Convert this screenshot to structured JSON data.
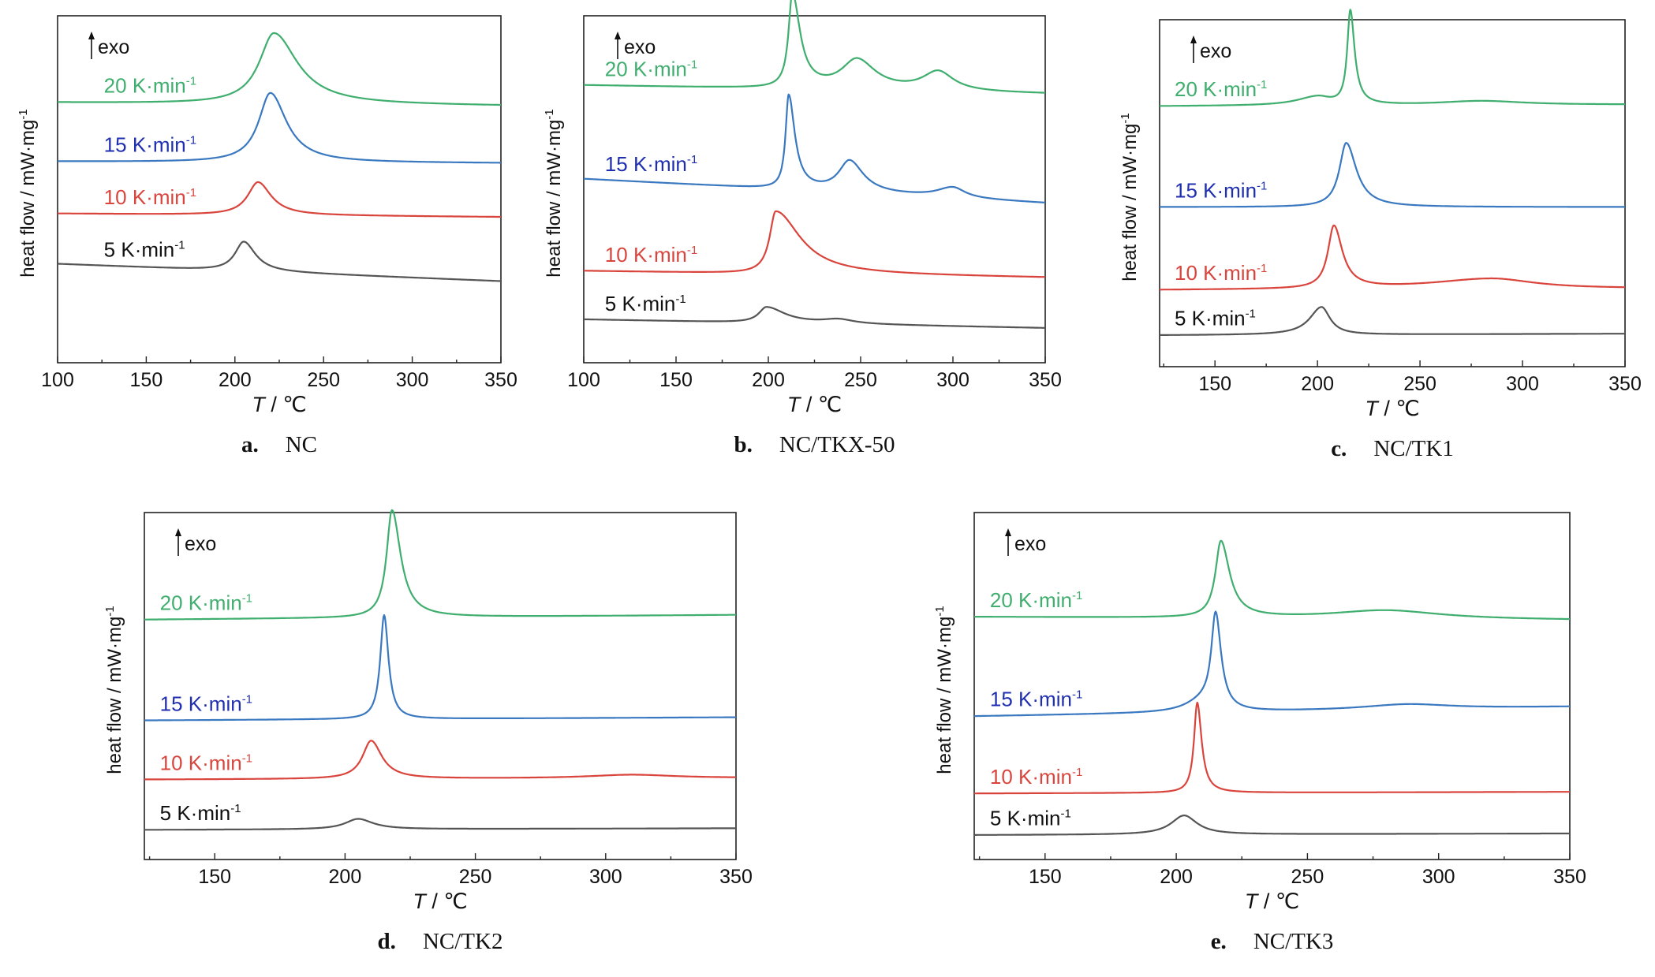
{
  "figure": {
    "colors": {
      "5": "#555555",
      "10": "#d9453d",
      "15": "#3a78c0",
      "20": "#3fae6e"
    },
    "label_colors": {
      "5": "#111111",
      "10": "#d9453d",
      "15": "#1f2fb0",
      "20": "#3fae6e"
    }
  },
  "chart_data": [
    {
      "type": "line",
      "panel_letter": "a.",
      "panel_name": "NC",
      "xlabel_italic": "T",
      "xlabel_rest": " / ℃",
      "ylabel": "heat flow / mW·mg",
      "ylabel_sup": "-1",
      "exo_label": "exo",
      "xlim": [
        100,
        350
      ],
      "xticks": [
        "100",
        "150",
        "200",
        "250",
        "300",
        "350"
      ],
      "series": [
        {
          "rate": "20",
          "label": "20 K·min",
          "label_sup": "-1",
          "label_x": 135,
          "baseline": [
            0.75,
            0.74
          ],
          "peaks": [
            {
              "t": 222,
              "h": 0.205,
              "wl": 10,
              "wr": 16
            }
          ]
        },
        {
          "rate": "15",
          "label": "15 K·min",
          "label_sup": "-1",
          "label_x": 135,
          "baseline": [
            0.58,
            0.575
          ],
          "peaks": [
            {
              "t": 220,
              "h": 0.2,
              "wl": 8,
              "wr": 11
            }
          ]
        },
        {
          "rate": "10",
          "label": "10 K·min",
          "label_sup": "-1",
          "label_x": 135,
          "baseline": [
            0.43,
            0.42
          ],
          "peaks": [
            {
              "t": 213,
              "h": 0.095,
              "wl": 7,
              "wr": 9
            }
          ]
        },
        {
          "rate": "5",
          "label": "5 K·min",
          "label_sup": "-1",
          "label_x": 135,
          "baseline": [
            0.285,
            0.235
          ],
          "peaks": [
            {
              "t": 205,
              "h": 0.085,
              "wl": 6,
              "wr": 8
            }
          ]
        }
      ]
    },
    {
      "type": "line",
      "panel_letter": "b.",
      "panel_name": "NC/TKX-50",
      "xlabel_italic": "T",
      "xlabel_rest": " / ℃",
      "ylabel": "heat flow / mW·mg",
      "ylabel_sup": "-1",
      "exo_label": "exo",
      "xlim": [
        100,
        350
      ],
      "xticks": [
        "100",
        "150",
        "200",
        "250",
        "300",
        "350"
      ],
      "series": [
        {
          "rate": "20",
          "label": "20 K·min",
          "label_sup": "-1",
          "label_x": 120,
          "baseline": [
            0.8,
            0.775
          ],
          "peaks": [
            {
              "t": 213,
              "h": 0.27,
              "wl": 2.5,
              "wr": 5
            },
            {
              "t": 248,
              "h": 0.085,
              "wl": 10,
              "wr": 12
            },
            {
              "t": 292,
              "h": 0.055,
              "wl": 10,
              "wr": 10
            }
          ]
        },
        {
          "rate": "15",
          "label": "15 K·min",
          "label_sup": "-1",
          "label_x": 120,
          "baseline": [
            0.53,
            0.46
          ],
          "peaks": [
            {
              "t": 211,
              "h": 0.27,
              "wl": 2,
              "wr": 4
            },
            {
              "t": 244,
              "h": 0.09,
              "wl": 7,
              "wr": 9
            },
            {
              "t": 300,
              "h": 0.03,
              "wl": 10,
              "wr": 8
            }
          ]
        },
        {
          "rate": "10",
          "label": "10 K·min",
          "label_sup": "-1",
          "label_x": 120,
          "baseline": [
            0.265,
            0.245
          ],
          "peaks": [
            {
              "t": 204,
              "h": 0.18,
              "wl": 4,
              "wr": 16
            }
          ]
        },
        {
          "rate": "5",
          "label": "5 K·min",
          "label_sup": "-1",
          "label_x": 120,
          "baseline": [
            0.125,
            0.1
          ],
          "peaks": [
            {
              "t": 199,
              "h": 0.045,
              "wl": 5,
              "wr": 12
            },
            {
              "t": 238,
              "h": 0.012,
              "wl": 10,
              "wr": 10
            }
          ]
        }
      ]
    },
    {
      "type": "line",
      "panel_letter": "c.",
      "panel_name": "NC/TK1",
      "xlabel_italic": "T",
      "xlabel_rest": " / ℃",
      "ylabel": "heat flow / mW·mg",
      "ylabel_sup": "-1",
      "exo_label": "exo",
      "xlim": [
        123,
        350
      ],
      "xticks": [
        "150",
        "200",
        "250",
        "300",
        "350"
      ],
      "series": [
        {
          "rate": "20",
          "label": "20 K·min",
          "label_sup": "-1",
          "label_x": 138,
          "baseline": [
            0.75,
            0.755
          ],
          "peaks": [
            {
              "t": 216,
              "h": 0.27,
              "wl": 1.8,
              "wr": 2.5
            },
            {
              "t": 200,
              "h": 0.025,
              "wl": 12,
              "wr": 8
            },
            {
              "t": 280,
              "h": 0.012,
              "wl": 25,
              "wr": 25
            }
          ]
        },
        {
          "rate": "15",
          "label": "15 K·min",
          "label_sup": "-1",
          "label_x": 138,
          "baseline": [
            0.46,
            0.46
          ],
          "peaks": [
            {
              "t": 214,
              "h": 0.185,
              "wl": 4,
              "wr": 6
            }
          ]
        },
        {
          "rate": "10",
          "label": "10 K·min",
          "label_sup": "-1",
          "label_x": 138,
          "baseline": [
            0.22,
            0.225
          ],
          "peaks": [
            {
              "t": 208,
              "h": 0.18,
              "wl": 3.5,
              "wr": 5
            },
            {
              "t": 285,
              "h": 0.03,
              "wl": 35,
              "wr": 25
            }
          ]
        },
        {
          "rate": "5",
          "label": "5 K·min",
          "label_sup": "-1",
          "label_x": 138,
          "baseline": [
            0.09,
            0.095
          ],
          "peaks": [
            {
              "t": 202,
              "h": 0.08,
              "wl": 7,
              "wr": 5
            }
          ]
        }
      ]
    },
    {
      "type": "line",
      "panel_letter": "d.",
      "panel_name": "NC/TK2",
      "xlabel_italic": "T",
      "xlabel_rest": " / ℃",
      "ylabel": "heat flow / mW·mg",
      "ylabel_sup": "-1",
      "exo_label": "exo",
      "xlim": [
        123,
        350
      ],
      "xticks": [
        "150",
        "200",
        "250",
        "300",
        "350"
      ],
      "series": [
        {
          "rate": "20",
          "label": "20 K·min",
          "label_sup": "-1",
          "label_x": 135,
          "baseline": [
            0.69,
            0.705
          ],
          "peaks": [
            {
              "t": 218,
              "h": 0.31,
              "wl": 2.5,
              "wr": 4
            }
          ]
        },
        {
          "rate": "15",
          "label": "15 K·min",
          "label_sup": "-1",
          "label_x": 135,
          "baseline": [
            0.4,
            0.41
          ],
          "peaks": [
            {
              "t": 215,
              "h": 0.3,
              "wl": 1.8,
              "wr": 2
            }
          ]
        },
        {
          "rate": "10",
          "label": "10 K·min",
          "label_sup": "-1",
          "label_x": 135,
          "baseline": [
            0.23,
            0.235
          ],
          "peaks": [
            {
              "t": 210,
              "h": 0.11,
              "wl": 4,
              "wr": 5
            },
            {
              "t": 310,
              "h": 0.01,
              "wl": 20,
              "wr": 20
            }
          ]
        },
        {
          "rate": "5",
          "label": "5 K·min",
          "label_sup": "-1",
          "label_x": 135,
          "baseline": [
            0.085,
            0.09
          ],
          "peaks": [
            {
              "t": 205,
              "h": 0.03,
              "wl": 6,
              "wr": 7
            }
          ]
        }
      ]
    },
    {
      "type": "line",
      "panel_letter": "e.",
      "panel_name": "NC/TK3",
      "xlabel_italic": "T",
      "xlabel_rest": " / ℃",
      "ylabel": "heat flow / mW·mg",
      "ylabel_sup": "-1",
      "exo_label": "exo",
      "xlim": [
        123,
        350
      ],
      "xticks": [
        "150",
        "200",
        "250",
        "300",
        "350"
      ],
      "series": [
        {
          "rate": "20",
          "label": "20 K·min",
          "label_sup": "-1",
          "label_x": 135,
          "baseline": [
            0.7,
            0.69
          ],
          "peaks": [
            {
              "t": 217,
              "h": 0.22,
              "wl": 2.5,
              "wr": 4
            },
            {
              "t": 280,
              "h": 0.025,
              "wl": 25,
              "wr": 25
            }
          ]
        },
        {
          "rate": "15",
          "label": "15 K·min",
          "label_sup": "-1",
          "label_x": 135,
          "baseline": [
            0.41,
            0.44
          ],
          "peaks": [
            {
              "t": 215,
              "h": 0.275,
              "wl": 2,
              "wr": 2.5
            },
            {
              "t": 210,
              "h": 0.03,
              "wl": 8,
              "wr": 5
            },
            {
              "t": 288,
              "h": 0.015,
              "wl": 20,
              "wr": 20
            }
          ]
        },
        {
          "rate": "10",
          "label": "10 K·min",
          "label_sup": "-1",
          "label_x": 135,
          "baseline": [
            0.19,
            0.195
          ],
          "peaks": [
            {
              "t": 208,
              "h": 0.26,
              "wl": 1.5,
              "wr": 2
            }
          ]
        },
        {
          "rate": "5",
          "label": "5 K·min",
          "label_sup": "-1",
          "label_x": 135,
          "baseline": [
            0.07,
            0.075
          ],
          "peaks": [
            {
              "t": 203,
              "h": 0.055,
              "wl": 6,
              "wr": 6
            }
          ]
        }
      ]
    }
  ]
}
